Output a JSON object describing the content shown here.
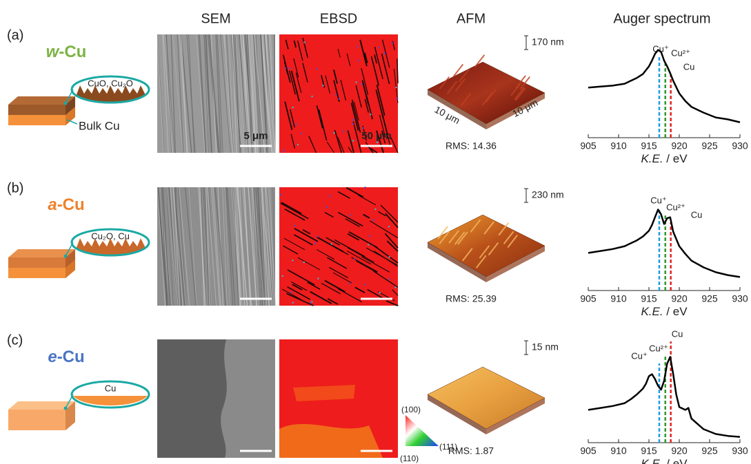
{
  "headers": {
    "sem": "SEM",
    "ebsd": "EBSD",
    "afm": "AFM",
    "auger": "Auger spectrum"
  },
  "rows": [
    {
      "label": "(a)",
      "name_italic": "w",
      "name_rest": "-Cu",
      "inset": "CuO, Cu₂O",
      "bulk": "Bulk Cu",
      "sem_scale": "5 μm",
      "ebsd_scale": "50 μm",
      "afm_height": "170 nm",
      "afm_axis": [
        "10 μm",
        "10 μm"
      ],
      "rms": "RMS: 14.36",
      "auger": {
        "type": "line",
        "color": "#000000",
        "xlim": [
          905,
          930
        ],
        "ylim": [
          0,
          1
        ],
        "xticks": [
          905,
          910,
          915,
          920,
          925,
          930
        ],
        "xlabel_italic": "K.E.",
        "xlabel_rest": " / eV",
        "x": [
          905,
          907,
          909,
          911,
          912,
          913,
          914,
          915,
          915.5,
          916,
          916.5,
          917,
          917.5,
          918,
          918.5,
          919,
          920,
          921,
          922,
          924,
          926,
          928,
          930
        ],
        "values": [
          0.52,
          0.53,
          0.54,
          0.56,
          0.59,
          0.62,
          0.66,
          0.74,
          0.8,
          0.87,
          0.91,
          0.89,
          0.8,
          0.74,
          0.67,
          0.59,
          0.46,
          0.38,
          0.32,
          0.26,
          0.21,
          0.19,
          0.16
        ],
        "peaks": [
          {
            "label": "Cu⁺",
            "x": 916.7,
            "color": "#1e9ee0"
          },
          {
            "label": "Cu²⁺",
            "x": 917.7,
            "color": "#2a9a2a"
          },
          {
            "label": "Cu",
            "x": 918.6,
            "color": "#e02424"
          }
        ]
      }
    },
    {
      "label": "(b)",
      "name_italic": "a",
      "name_rest": "-Cu",
      "inset": "Cu₂O, Cu",
      "afm_height": "230 nm",
      "rms": "RMS: 25.39",
      "auger": {
        "type": "line",
        "color": "#000000",
        "xlim": [
          905,
          930
        ],
        "ylim": [
          0,
          1
        ],
        "xticks": [
          905,
          910,
          915,
          920,
          925,
          930
        ],
        "xlabel_italic": "K.E.",
        "xlabel_rest": " / eV",
        "x": [
          905,
          907,
          909,
          911,
          912,
          913,
          914,
          915,
          915.5,
          916,
          916.5,
          917,
          917.5,
          918,
          918.5,
          919,
          920,
          921,
          922,
          924,
          926,
          928,
          930
        ],
        "values": [
          0.39,
          0.41,
          0.43,
          0.46,
          0.49,
          0.52,
          0.56,
          0.62,
          0.68,
          0.76,
          0.84,
          0.79,
          0.69,
          0.75,
          0.76,
          0.61,
          0.46,
          0.38,
          0.31,
          0.24,
          0.19,
          0.16,
          0.14
        ],
        "peaks": [
          {
            "label": "Cu⁺",
            "x": 916.7,
            "color": "#1e9ee0"
          },
          {
            "label": "Cu²⁺",
            "x": 917.7,
            "color": "#2a9a2a"
          },
          {
            "label": "Cu",
            "x": 918.6,
            "color": "#e02424"
          }
        ]
      }
    },
    {
      "label": "(c)",
      "name_italic": "e",
      "name_rest": "-Cu",
      "inset": "Cu",
      "afm_height": "15 nm",
      "rms": "RMS: 1.87",
      "auger": {
        "type": "line",
        "color": "#000000",
        "xlim": [
          905,
          930
        ],
        "ylim": [
          0,
          1
        ],
        "xticks": [
          905,
          910,
          915,
          920,
          925,
          930
        ],
        "xlabel_italic": "K.E.",
        "xlabel_rest": " / eV",
        "x": [
          905,
          907,
          909,
          911,
          912,
          913,
          914,
          914.5,
          915,
          915.5,
          916,
          916.5,
          917,
          917.5,
          918,
          918.5,
          919,
          919.5,
          920,
          921,
          921.5,
          922,
          924,
          926,
          928,
          930
        ],
        "values": [
          0.34,
          0.36,
          0.38,
          0.41,
          0.45,
          0.5,
          0.56,
          0.61,
          0.69,
          0.71,
          0.66,
          0.59,
          0.55,
          0.64,
          0.82,
          0.89,
          0.71,
          0.5,
          0.37,
          0.34,
          0.36,
          0.25,
          0.14,
          0.09,
          0.07,
          0.06
        ],
        "peaks": [
          {
            "label": "Cu⁺",
            "x": 916.7,
            "color": "#1e9ee0"
          },
          {
            "label": "Cu²⁺",
            "x": 917.7,
            "color": "#2a9a2a"
          },
          {
            "label": "Cu",
            "x": 918.6,
            "color": "#e02424"
          }
        ]
      }
    }
  ],
  "ipf_legend": [
    "(100)",
    "(111)",
    "(110)"
  ]
}
